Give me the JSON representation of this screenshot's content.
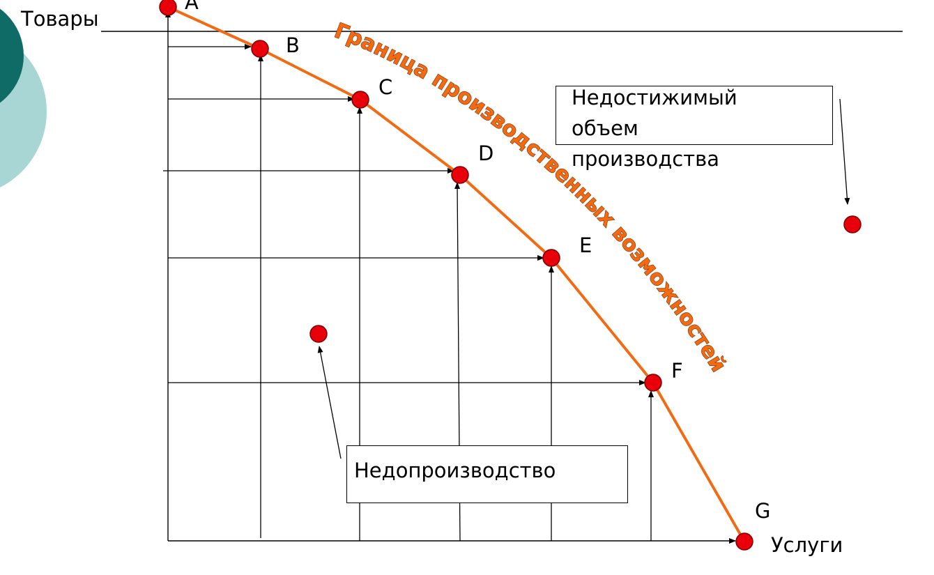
{
  "axes": {
    "y_label": "Товары",
    "x_label": "Услуги"
  },
  "frontier": {
    "title": "Граница производственных возможностей",
    "points": [
      {
        "name": "A"
      },
      {
        "name": "B"
      },
      {
        "name": "C"
      },
      {
        "name": "D"
      },
      {
        "name": "E"
      },
      {
        "name": "F"
      },
      {
        "name": "G"
      }
    ],
    "line_color": "#f26b13",
    "point_color": "#e8000b"
  },
  "regions": {
    "unreachable_label": "Недостижимый\nобъем\nпроизводства",
    "underproduction_label": "Недопроизводство"
  },
  "colors": {
    "title_fill": "#f26b13",
    "title_stroke": "#7a2a00",
    "decor_dark": "#0e6b66",
    "decor_light": "#a7d6d4"
  }
}
